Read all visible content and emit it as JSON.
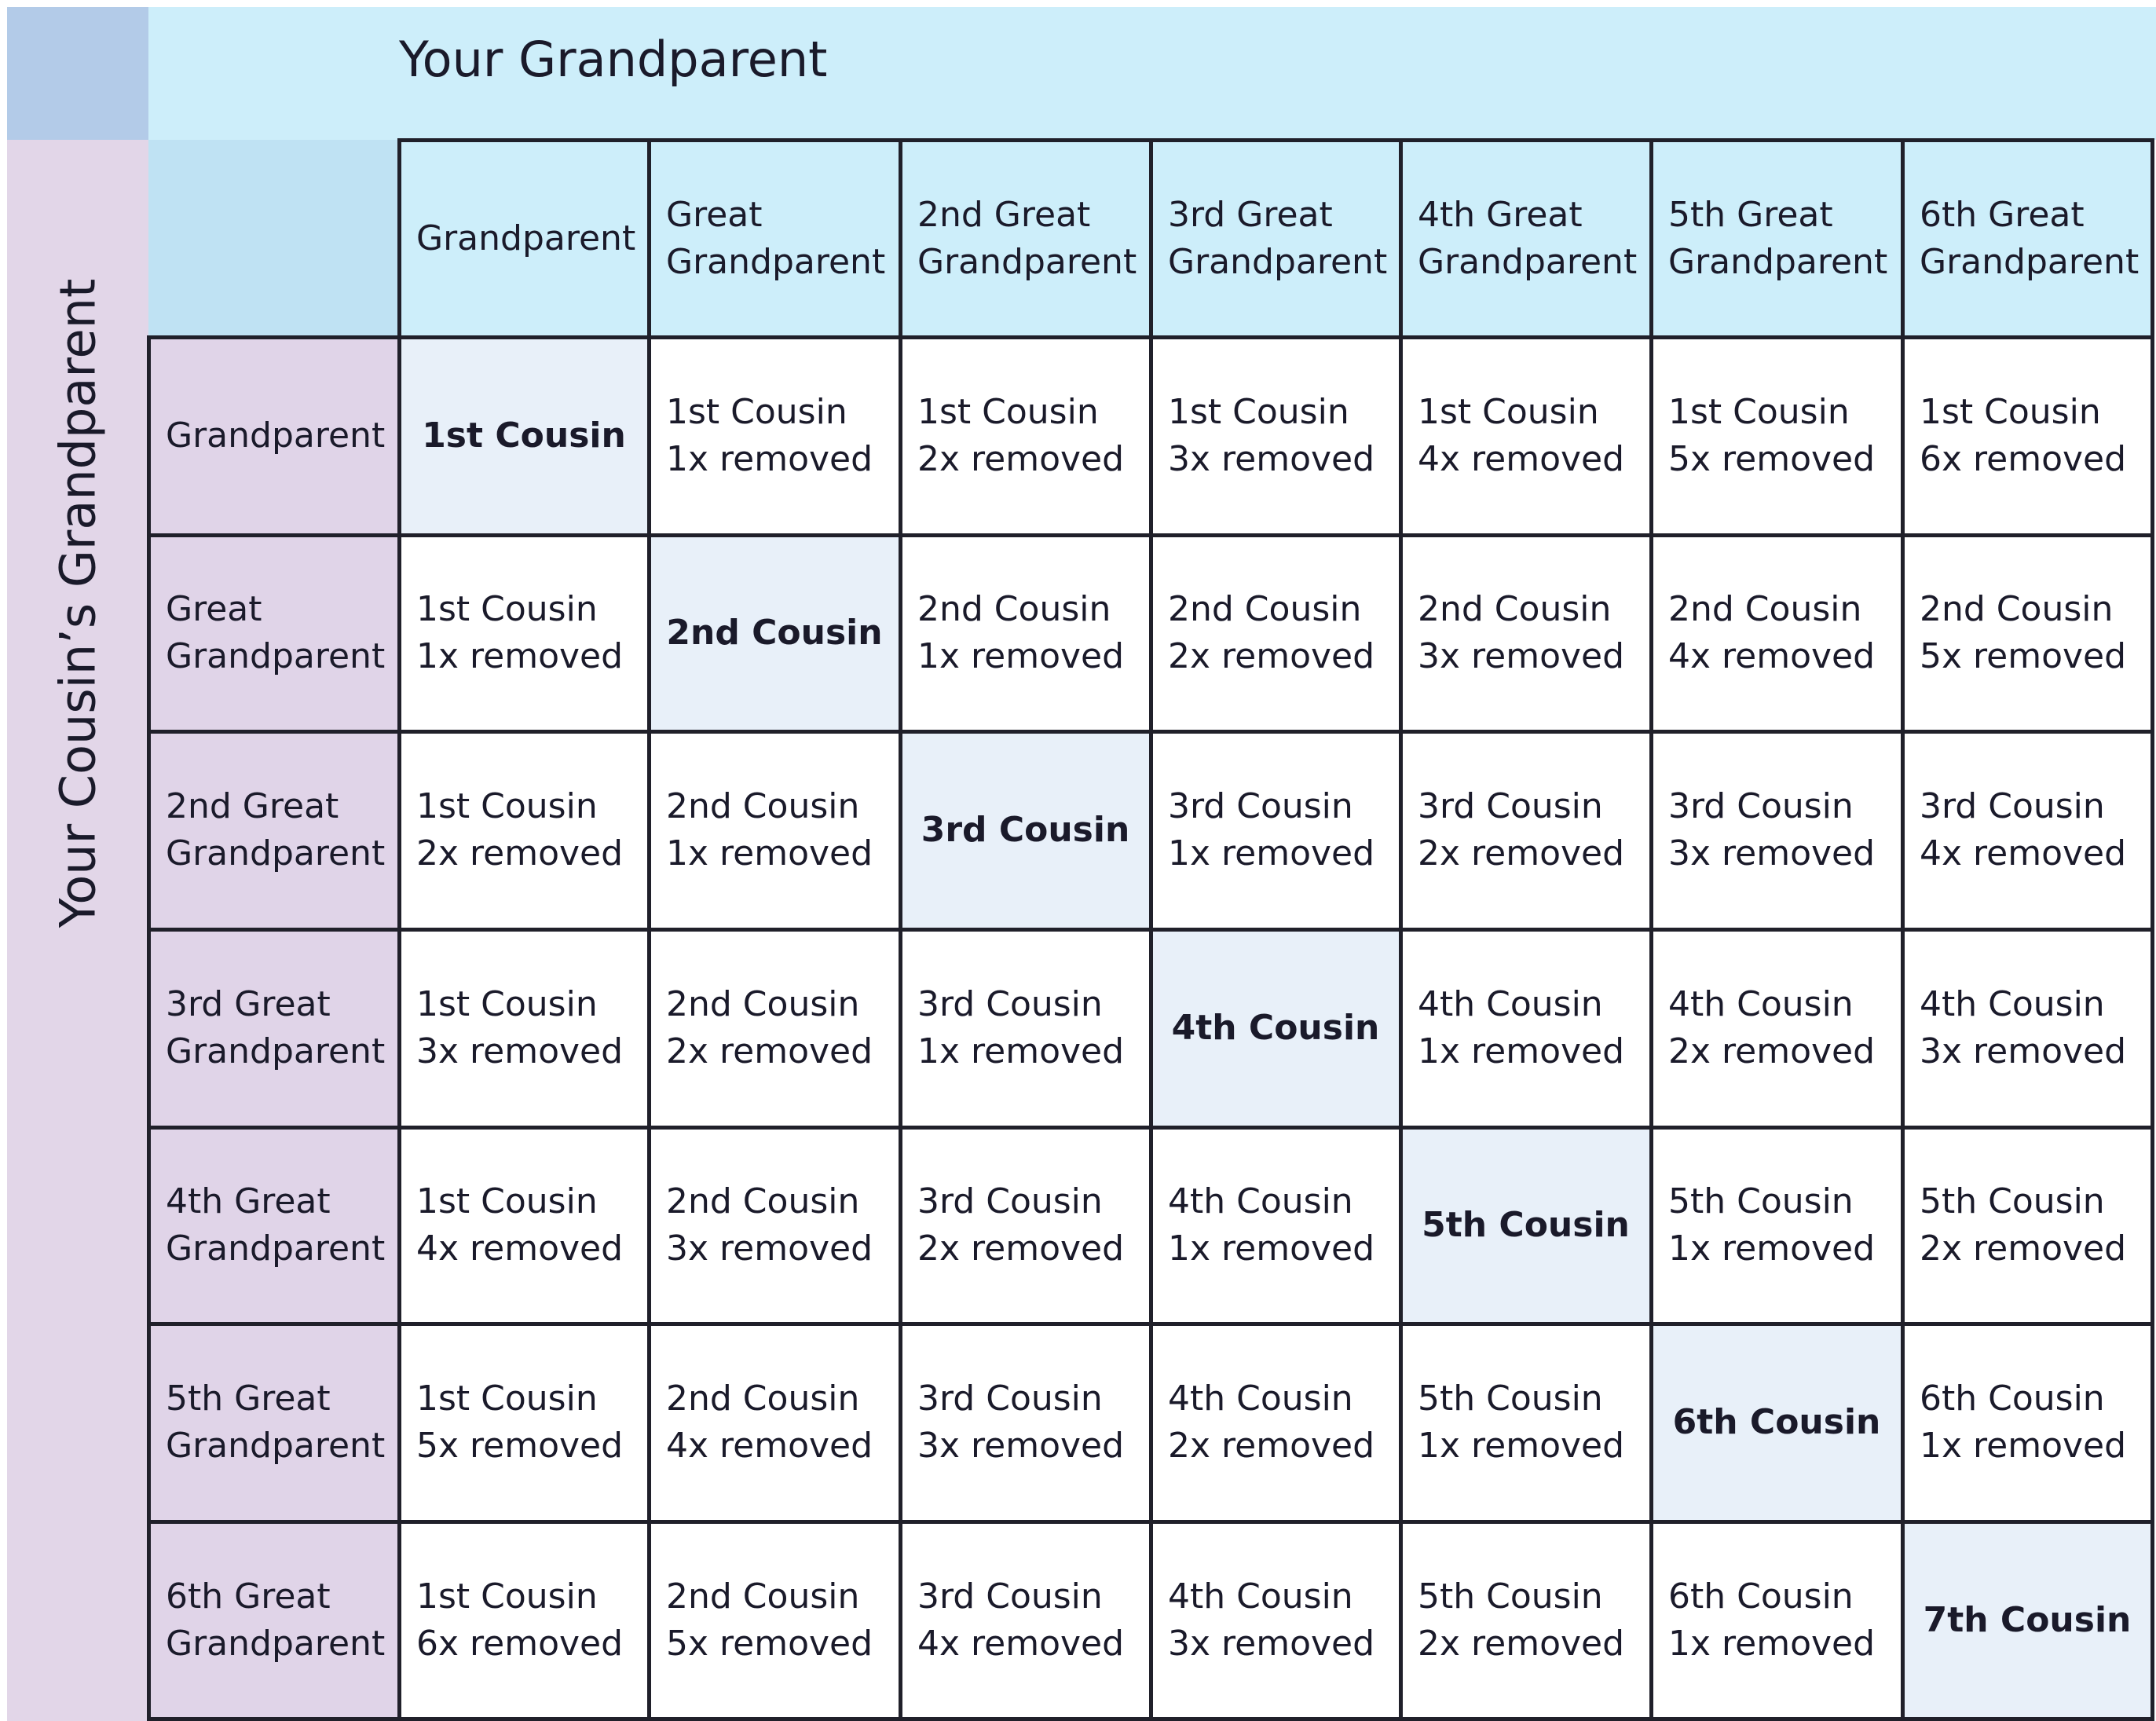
{
  "header": {
    "top_title": "Your Grandparent",
    "side_title": "Your Cousin’s Grandparent"
  },
  "columns": [
    [
      "Grandparent"
    ],
    [
      "Great",
      "Grandparent"
    ],
    [
      "2nd Great",
      "Grandparent"
    ],
    [
      "3rd Great",
      "Grandparent"
    ],
    [
      "4th Great",
      "Grandparent"
    ],
    [
      "5th Great",
      "Grandparent"
    ],
    [
      "6th Great",
      "Grandparent"
    ]
  ],
  "rows": [
    [
      "Grandparent"
    ],
    [
      "Great",
      "Grandparent"
    ],
    [
      "2nd Great",
      "Grandparent"
    ],
    [
      "3rd Great",
      "Grandparent"
    ],
    [
      "4th Great",
      "Grandparent"
    ],
    [
      "5th Great",
      "Grandparent"
    ],
    [
      "6th Great",
      "Grandparent"
    ]
  ],
  "cells": [
    [
      [
        "1st Cousin"
      ],
      [
        "1st Cousin",
        "1x removed"
      ],
      [
        "1st Cousin",
        "2x removed"
      ],
      [
        "1st Cousin",
        "3x removed"
      ],
      [
        "1st Cousin",
        "4x removed"
      ],
      [
        "1st Cousin",
        "5x removed"
      ],
      [
        "1st Cousin",
        "6x removed"
      ]
    ],
    [
      [
        "1st Cousin",
        "1x removed"
      ],
      [
        "2nd Cousin"
      ],
      [
        "2nd Cousin",
        "1x removed"
      ],
      [
        "2nd Cousin",
        "2x removed"
      ],
      [
        "2nd Cousin",
        "3x removed"
      ],
      [
        "2nd Cousin",
        "4x removed"
      ],
      [
        "2nd Cousin",
        "5x removed"
      ]
    ],
    [
      [
        "1st Cousin",
        "2x removed"
      ],
      [
        "2nd Cousin",
        "1x removed"
      ],
      [
        "3rd Cousin"
      ],
      [
        "3rd Cousin",
        "1x removed"
      ],
      [
        "3rd Cousin",
        "2x removed"
      ],
      [
        "3rd Cousin",
        "3x removed"
      ],
      [
        "3rd Cousin",
        "4x removed"
      ]
    ],
    [
      [
        "1st Cousin",
        "3x removed"
      ],
      [
        "2nd Cousin",
        "2x removed"
      ],
      [
        "3rd Cousin",
        "1x removed"
      ],
      [
        "4th Cousin"
      ],
      [
        "4th Cousin",
        "1x removed"
      ],
      [
        "4th Cousin",
        "2x removed"
      ],
      [
        "4th Cousin",
        "3x removed"
      ]
    ],
    [
      [
        "1st Cousin",
        "4x removed"
      ],
      [
        "2nd Cousin",
        "3x removed"
      ],
      [
        "3rd Cousin",
        "2x removed"
      ],
      [
        "4th Cousin",
        "1x removed"
      ],
      [
        "5th Cousin"
      ],
      [
        "5th Cousin",
        "1x removed"
      ],
      [
        "5th Cousin",
        "2x removed"
      ]
    ],
    [
      [
        "1st Cousin",
        "5x removed"
      ],
      [
        "2nd Cousin",
        "4x removed"
      ],
      [
        "3rd Cousin",
        "3x removed"
      ],
      [
        "4th Cousin",
        "2x removed"
      ],
      [
        "5th Cousin",
        "1x removed"
      ],
      [
        "6th Cousin"
      ],
      [
        "6th Cousin",
        "1x removed"
      ]
    ],
    [
      [
        "1st Cousin",
        "6x removed"
      ],
      [
        "2nd Cousin",
        "5x removed"
      ],
      [
        "3rd Cousin",
        "4x removed"
      ],
      [
        "4th Cousin",
        "3x removed"
      ],
      [
        "5th Cousin",
        "2x removed"
      ],
      [
        "6th Cousin",
        "1x removed"
      ],
      [
        "7th Cousin"
      ]
    ]
  ]
}
